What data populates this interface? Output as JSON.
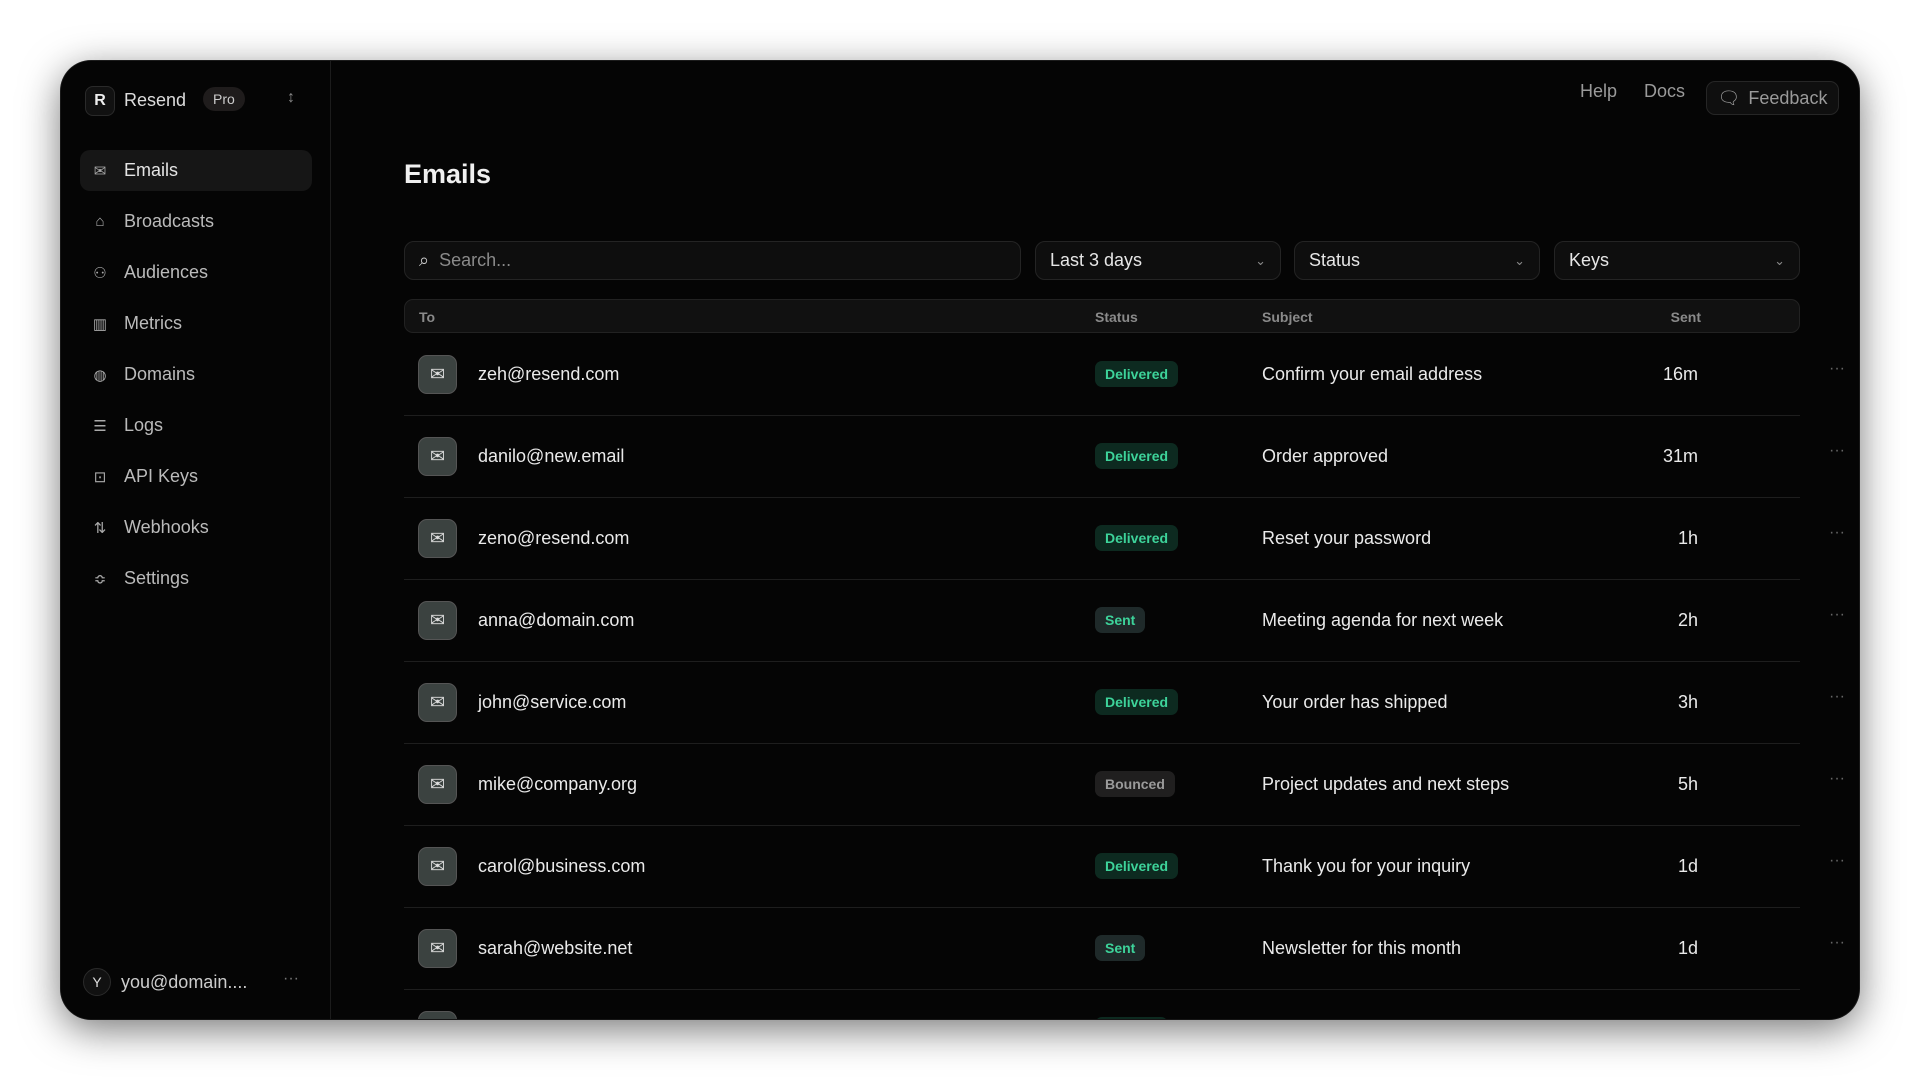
{
  "brand": {
    "logo": "R",
    "name": "Resend",
    "plan": "Pro"
  },
  "sidebar": {
    "items": [
      {
        "label": "Emails",
        "icon": "mail-icon",
        "active": true
      },
      {
        "label": "Broadcasts",
        "icon": "broadcast-icon"
      },
      {
        "label": "Audiences",
        "icon": "users-icon"
      },
      {
        "label": "Metrics",
        "icon": "bar-chart-icon"
      },
      {
        "label": "Domains",
        "icon": "globe-icon"
      },
      {
        "label": "Logs",
        "icon": "list-icon"
      },
      {
        "label": "API Keys",
        "icon": "lock-icon"
      },
      {
        "label": "Webhooks",
        "icon": "arrows-icon"
      },
      {
        "label": "Settings",
        "icon": "sliders-icon"
      }
    ],
    "user": {
      "initial": "Y",
      "email": "you@domain....",
      "more": "···"
    }
  },
  "topbar": {
    "help": "Help",
    "docs": "Docs",
    "feedback": "Feedback"
  },
  "page": {
    "title": "Emails"
  },
  "filters": {
    "search_placeholder": "Search...",
    "date": "Last 3 days",
    "status": "Status",
    "keys": "Keys"
  },
  "table": {
    "headers": {
      "to": "To",
      "status": "Status",
      "subject": "Subject",
      "sent": "Sent"
    },
    "rows": [
      {
        "to": "zeh@resend.com",
        "status": "Delivered",
        "subject": "Confirm your email address",
        "sent": "16m"
      },
      {
        "to": "danilo@new.email",
        "status": "Delivered",
        "subject": "Order approved",
        "sent": "31m"
      },
      {
        "to": "zeno@resend.com",
        "status": "Delivered",
        "subject": "Reset your password",
        "sent": "1h"
      },
      {
        "to": "anna@domain.com",
        "status": "Sent",
        "subject": "Meeting agenda for next week",
        "sent": "2h"
      },
      {
        "to": "john@service.com",
        "status": "Delivered",
        "subject": "Your order has shipped",
        "sent": "3h"
      },
      {
        "to": "mike@company.org",
        "status": "Bounced",
        "subject": "Project updates and next steps",
        "sent": "5h"
      },
      {
        "to": "carol@business.com",
        "status": "Delivered",
        "subject": "Thank you for your inquiry",
        "sent": "1d"
      },
      {
        "to": "sarah@website.net",
        "status": "Sent",
        "subject": "Newsletter for this month",
        "sent": "1d"
      }
    ]
  },
  "colors": {
    "delivered": "#3dd39a",
    "background": "#050505"
  }
}
